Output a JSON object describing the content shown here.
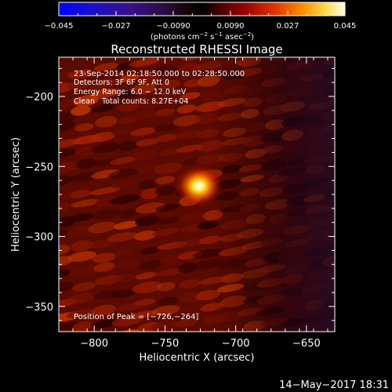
{
  "colorbar": {
    "tick_labels": [
      "−0.045",
      "−0.027",
      "−0.0090",
      "0.0090",
      "0.027",
      "0.045"
    ],
    "range": [
      -0.045,
      0.045
    ],
    "units_main": "(photons cm",
    "units_exp1": "−2",
    "units_mid": " s",
    "units_exp2": "−1",
    "units_tail": " asec",
    "units_exp3": "−2",
    "units_close": ")",
    "colormap": "rhessi-hot"
  },
  "chart_data": {
    "type": "heatmap",
    "title": "Reconstructed RHESSI Image",
    "xlabel": "Heliocentric X (arcsec)",
    "ylabel": "Heliocentric Y (arcsec)",
    "xlim": [
      -825,
      -630
    ],
    "ylim": [
      -368,
      -172
    ],
    "x_ticks": [
      -800,
      -750,
      -700,
      -650
    ],
    "x_tick_labels": [
      "−800",
      "−750",
      "−700",
      "−650"
    ],
    "y_ticks": [
      -200,
      -250,
      -300,
      -350
    ],
    "y_tick_labels": [
      "−200",
      "−250",
      "−300",
      "−350"
    ],
    "annotations": {
      "time_range": "23-Sep-2014 02:18:50.000 to 02:28:50.000",
      "detectors": "Detectors: 3F 6F 9F, Att 0",
      "energy": "Energy Range: 6.0 − 12.0 keV",
      "method": "Clean",
      "counts": "Total counts: 8.27E+04",
      "peak": "Position of Peak = [−726,−264]"
    },
    "peak_position": [
      -726,
      -264
    ],
    "peak_value": 0.045
  },
  "footer": {
    "timestamp": "14−May−2017 18:31"
  }
}
